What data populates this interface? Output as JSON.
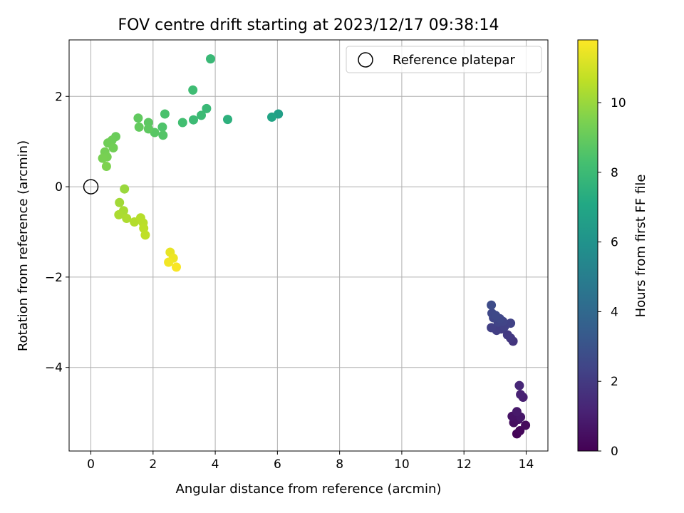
{
  "chart_data": {
    "type": "scatter",
    "title": "FOV centre drift starting at 2023/12/17 09:38:14",
    "xlabel": "Angular distance from reference (arcmin)",
    "ylabel": "Rotation from reference (arcmin)",
    "xlim": [
      -0.7,
      14.7
    ],
    "ylim": [
      -5.85,
      3.25
    ],
    "xticks": [
      0,
      2,
      4,
      6,
      8,
      10,
      12,
      14
    ],
    "yticks": [
      -4,
      -2,
      0,
      2
    ],
    "grid": true,
    "legend": {
      "placement": "top-right",
      "entries": [
        "Reference platepar"
      ]
    },
    "reference_point": {
      "x": 0,
      "y": 0,
      "label": "Reference platepar"
    },
    "colorbar": {
      "label": "Hours from first FF file",
      "range": [
        0,
        11.8
      ],
      "ticks": [
        0,
        2,
        4,
        6,
        8,
        10
      ],
      "colormap": "viridis"
    },
    "points": [
      {
        "x": 13.7,
        "y": -5.47,
        "h": 0.1
      },
      {
        "x": 13.8,
        "y": -5.4,
        "h": 0.2
      },
      {
        "x": 13.98,
        "y": -5.28,
        "h": 0.3
      },
      {
        "x": 13.6,
        "y": -5.22,
        "h": 0.4
      },
      {
        "x": 13.75,
        "y": -5.15,
        "h": 0.5
      },
      {
        "x": 13.55,
        "y": -5.08,
        "h": 0.6
      },
      {
        "x": 13.82,
        "y": -5.1,
        "h": 0.7
      },
      {
        "x": 13.7,
        "y": -4.98,
        "h": 0.8
      },
      {
        "x": 13.9,
        "y": -4.66,
        "h": 1.0
      },
      {
        "x": 13.82,
        "y": -4.6,
        "h": 1.1
      },
      {
        "x": 13.78,
        "y": -4.4,
        "h": 1.3
      },
      {
        "x": 13.58,
        "y": -3.42,
        "h": 1.8
      },
      {
        "x": 13.5,
        "y": -3.35,
        "h": 1.9
      },
      {
        "x": 13.4,
        "y": -3.28,
        "h": 2.0
      },
      {
        "x": 13.2,
        "y": -3.15,
        "h": 2.1
      },
      {
        "x": 13.05,
        "y": -3.18,
        "h": 2.15
      },
      {
        "x": 12.88,
        "y": -3.12,
        "h": 2.2
      },
      {
        "x": 13.3,
        "y": -3.1,
        "h": 2.25
      },
      {
        "x": 13.5,
        "y": -3.02,
        "h": 2.3
      },
      {
        "x": 13.1,
        "y": -3.0,
        "h": 2.35
      },
      {
        "x": 13.25,
        "y": -2.98,
        "h": 2.4
      },
      {
        "x": 12.95,
        "y": -2.9,
        "h": 2.45
      },
      {
        "x": 13.15,
        "y": -2.92,
        "h": 2.5
      },
      {
        "x": 12.9,
        "y": -2.8,
        "h": 2.55
      },
      {
        "x": 13.02,
        "y": -2.85,
        "h": 2.6
      },
      {
        "x": 12.88,
        "y": -2.62,
        "h": 2.7
      },
      {
        "x": 6.03,
        "y": 1.61,
        "h": 6.6
      },
      {
        "x": 5.82,
        "y": 1.54,
        "h": 6.9
      },
      {
        "x": 4.4,
        "y": 1.49,
        "h": 7.5
      },
      {
        "x": 3.85,
        "y": 2.83,
        "h": 7.9
      },
      {
        "x": 3.72,
        "y": 1.73,
        "h": 7.9
      },
      {
        "x": 3.55,
        "y": 1.58,
        "h": 8.0
      },
      {
        "x": 3.3,
        "y": 1.48,
        "h": 8.0
      },
      {
        "x": 3.28,
        "y": 2.14,
        "h": 8.1
      },
      {
        "x": 2.95,
        "y": 1.42,
        "h": 8.2
      },
      {
        "x": 2.38,
        "y": 1.61,
        "h": 8.4
      },
      {
        "x": 2.3,
        "y": 1.32,
        "h": 8.5
      },
      {
        "x": 2.32,
        "y": 1.14,
        "h": 8.6
      },
      {
        "x": 2.05,
        "y": 1.2,
        "h": 8.7
      },
      {
        "x": 1.85,
        "y": 1.42,
        "h": 8.8
      },
      {
        "x": 1.85,
        "y": 1.28,
        "h": 8.85
      },
      {
        "x": 1.52,
        "y": 1.52,
        "h": 8.9
      },
      {
        "x": 1.55,
        "y": 1.32,
        "h": 8.95
      },
      {
        "x": 0.8,
        "y": 1.11,
        "h": 9.1
      },
      {
        "x": 0.68,
        "y": 1.03,
        "h": 9.15
      },
      {
        "x": 0.55,
        "y": 0.97,
        "h": 9.2
      },
      {
        "x": 0.72,
        "y": 0.86,
        "h": 9.25
      },
      {
        "x": 0.45,
        "y": 0.77,
        "h": 9.3
      },
      {
        "x": 0.52,
        "y": 0.66,
        "h": 9.35
      },
      {
        "x": 0.38,
        "y": 0.63,
        "h": 9.4
      },
      {
        "x": 0.5,
        "y": 0.45,
        "h": 9.5
      },
      {
        "x": 1.08,
        "y": -0.05,
        "h": 10.0
      },
      {
        "x": 0.92,
        "y": -0.35,
        "h": 10.15
      },
      {
        "x": 1.05,
        "y": -0.53,
        "h": 10.25
      },
      {
        "x": 0.9,
        "y": -0.62,
        "h": 10.3
      },
      {
        "x": 1.15,
        "y": -0.7,
        "h": 10.35
      },
      {
        "x": 1.4,
        "y": -0.78,
        "h": 10.45
      },
      {
        "x": 1.6,
        "y": -0.69,
        "h": 10.5
      },
      {
        "x": 1.68,
        "y": -0.8,
        "h": 10.55
      },
      {
        "x": 1.7,
        "y": -0.92,
        "h": 10.6
      },
      {
        "x": 1.75,
        "y": -1.07,
        "h": 10.65
      },
      {
        "x": 2.55,
        "y": -1.45,
        "h": 11.4
      },
      {
        "x": 2.65,
        "y": -1.58,
        "h": 11.5
      },
      {
        "x": 2.5,
        "y": -1.67,
        "h": 11.6
      },
      {
        "x": 2.75,
        "y": -1.78,
        "h": 11.7
      }
    ]
  }
}
